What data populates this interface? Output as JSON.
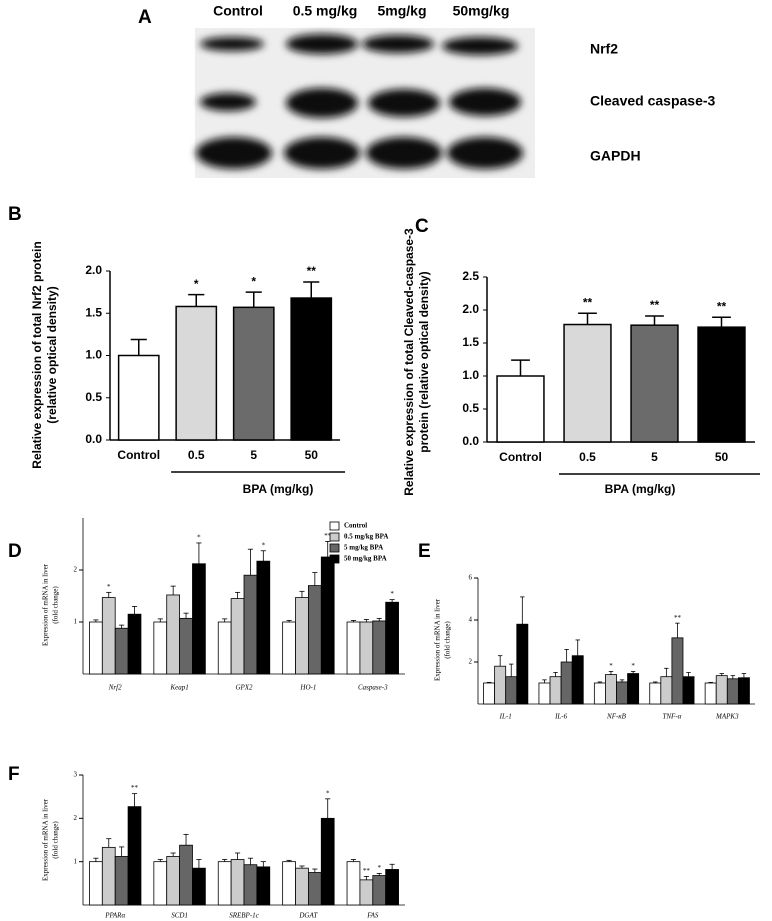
{
  "blot": {
    "panel": "A",
    "lanes": [
      "Control",
      "0.5 mg/kg",
      "5mg/kg",
      "50mg/kg"
    ],
    "proteins": [
      "Nrf2",
      "Cleaved caspase-3",
      "GAPDH"
    ]
  },
  "chart_data": [
    {
      "type": "bar",
      "panel": "B",
      "ylabel": [
        "Relative expression of total Nrf2 protein",
        "(relative optical density)"
      ],
      "xlabel": "BPA (mg/kg)",
      "categories": [
        "Control",
        "0.5",
        "5",
        "50"
      ],
      "values": [
        1.0,
        1.58,
        1.57,
        1.68
      ],
      "errors": [
        0.19,
        0.14,
        0.18,
        0.19
      ],
      "annotations": [
        null,
        "*",
        "*",
        "**"
      ],
      "colors": [
        "#ffffff",
        "#d9d9d9",
        "#6b6b6b",
        "#000000"
      ],
      "ylim": [
        0,
        2.0
      ],
      "yticks": [
        {
          "value": 0,
          "label": "0.0"
        },
        0.5,
        {
          "value": 1,
          "label": "1.0"
        },
        1.5,
        {
          "value": 2,
          "label": "2.0"
        }
      ]
    },
    {
      "type": "bar",
      "panel": "C",
      "ylabel": [
        "Relative expression of total Cleaved-caspase-3",
        "protein  (relative optical density)"
      ],
      "xlabel": "BPA (mg/kg)",
      "categories": [
        "Control",
        "0.5",
        "5",
        "50"
      ],
      "values": [
        1.0,
        1.78,
        1.77,
        1.74
      ],
      "errors": [
        0.24,
        0.17,
        0.14,
        0.15
      ],
      "annotations": [
        null,
        "**",
        "**",
        "**"
      ],
      "colors": [
        "#ffffff",
        "#d9d9d9",
        "#6b6b6b",
        "#000000"
      ],
      "ylim": [
        0,
        2.5
      ],
      "yticks": [
        {
          "value": 0,
          "label": "0.0"
        },
        0.5,
        {
          "value": 1,
          "label": "1.0"
        },
        1.5,
        {
          "value": 2,
          "label": "2.0"
        },
        2.5
      ]
    },
    {
      "type": "bar",
      "panel": "D",
      "ylabel": [
        "Expression of mRNA in liver",
        "(fold change)"
      ],
      "legend": "top-right",
      "categories": [
        "Nrf2",
        "Keap1",
        "GPX2",
        "HO-1",
        "Caspase-3"
      ],
      "ylim": [
        0,
        3
      ],
      "yticks": [
        1,
        2
      ],
      "series": [
        {
          "name": "Control",
          "color": "#ffffff",
          "values": [
            1.0,
            1.0,
            1.0,
            1.0,
            1.0
          ],
          "errors": [
            0.04,
            0.06,
            0.06,
            0.03,
            0.03
          ],
          "annotations": [
            null,
            null,
            null,
            null,
            null
          ]
        },
        {
          "name": "0.5 mg/kg BPA",
          "color": "#cccccc",
          "values": [
            1.47,
            1.52,
            1.45,
            1.47,
            1.0
          ],
          "errors": [
            0.1,
            0.17,
            0.12,
            0.12,
            0.05
          ],
          "annotations": [
            "*",
            null,
            null,
            null,
            null
          ]
        },
        {
          "name": "5 mg/kg BPA",
          "color": "#666666",
          "values": [
            0.88,
            1.07,
            1.9,
            1.7,
            1.02
          ],
          "errors": [
            0.06,
            0.1,
            0.5,
            0.25,
            0.05
          ],
          "annotations": [
            null,
            null,
            null,
            null,
            null
          ]
        },
        {
          "name": "50 mg/kg BPA",
          "color": "#000000",
          "values": [
            1.15,
            2.12,
            2.17,
            2.25,
            1.38
          ],
          "errors": [
            0.15,
            0.4,
            0.2,
            0.3,
            0.05
          ],
          "annotations": [
            null,
            "*",
            "*",
            "**",
            "*"
          ]
        }
      ]
    },
    {
      "type": "bar",
      "panel": "E",
      "ylabel": [
        "Expression of mRNA in liver",
        "(fold change)"
      ],
      "categories": [
        "IL-1",
        "IL-6",
        "NF-κB",
        "TNF-α",
        "MAPK3"
      ],
      "ylim": [
        0,
        6
      ],
      "yticks": [
        2,
        4,
        6
      ],
      "series": [
        {
          "name": "Control",
          "color": "#ffffff",
          "values": [
            1.0,
            1.0,
            1.0,
            1.0,
            1.0
          ],
          "errors": [
            0.03,
            0.15,
            0.05,
            0.05,
            0.03
          ],
          "annotations": [
            null,
            null,
            null,
            null,
            null
          ]
        },
        {
          "name": "0.5 mg/kg BPA",
          "color": "#cccccc",
          "values": [
            1.8,
            1.3,
            1.4,
            1.3,
            1.35
          ],
          "errors": [
            0.5,
            0.2,
            0.15,
            0.4,
            0.1
          ],
          "annotations": [
            null,
            null,
            "*",
            null,
            null
          ]
        },
        {
          "name": "5 mg/kg BPA",
          "color": "#666666",
          "values": [
            1.3,
            2.0,
            1.05,
            3.15,
            1.2
          ],
          "errors": [
            0.6,
            0.6,
            0.1,
            0.7,
            0.15
          ],
          "annotations": [
            null,
            null,
            null,
            "**",
            null
          ]
        },
        {
          "name": "50 mg/kg BPA",
          "color": "#000000",
          "values": [
            3.8,
            2.3,
            1.45,
            1.3,
            1.25
          ],
          "errors": [
            1.3,
            0.75,
            0.1,
            0.2,
            0.2
          ],
          "annotations": [
            null,
            null,
            "*",
            null,
            null
          ]
        }
      ]
    },
    {
      "type": "bar",
      "panel": "F",
      "ylabel": [
        "Expression of mRNA in liver",
        "(fold change)"
      ],
      "categories": [
        "PPARα",
        "SCD1",
        "SREBP-1c",
        "DGAT",
        "FAS"
      ],
      "ylim": [
        0,
        3
      ],
      "yticks": [
        1,
        2,
        3
      ],
      "series": [
        {
          "name": "Control",
          "color": "#ffffff",
          "values": [
            1.0,
            1.0,
            1.0,
            1.0,
            1.0
          ],
          "errors": [
            0.08,
            0.05,
            0.05,
            0.03,
            0.05
          ],
          "annotations": [
            null,
            null,
            null,
            null,
            null
          ]
        },
        {
          "name": "0.5 mg/kg BPA",
          "color": "#cccccc",
          "values": [
            1.33,
            1.12,
            1.05,
            0.85,
            0.58
          ],
          "errors": [
            0.2,
            0.08,
            0.15,
            0.05,
            0.08
          ],
          "annotations": [
            null,
            null,
            null,
            null,
            "**"
          ]
        },
        {
          "name": "5 mg/kg BPA",
          "color": "#666666",
          "values": [
            1.12,
            1.38,
            0.93,
            0.75,
            0.68
          ],
          "errors": [
            0.22,
            0.25,
            0.15,
            0.08,
            0.05
          ],
          "annotations": [
            null,
            null,
            null,
            null,
            "*"
          ]
        },
        {
          "name": "50 mg/kg BPA",
          "color": "#000000",
          "values": [
            2.27,
            0.85,
            0.88,
            2.0,
            0.82
          ],
          "errors": [
            0.3,
            0.2,
            0.12,
            0.45,
            0.12
          ],
          "annotations": [
            "**",
            null,
            null,
            "*",
            null
          ]
        }
      ]
    }
  ]
}
